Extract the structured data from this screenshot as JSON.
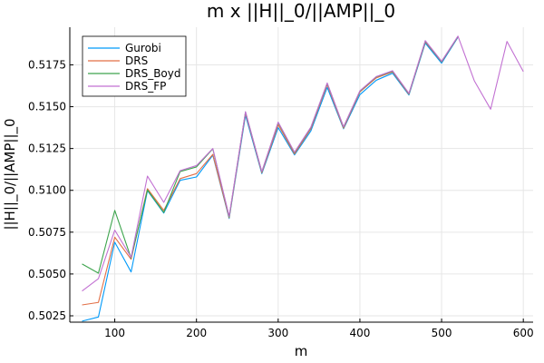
{
  "chart_data": {
    "type": "line",
    "title": "m x ||H||_0/||AMP||_0",
    "xlabel": "m",
    "ylabel": "||H||_0/||AMP||_0",
    "xlim": [
      45,
      612
    ],
    "ylim": [
      5.0212,
      5.1975
    ],
    "xticks": [
      100,
      200,
      300,
      400,
      500,
      600
    ],
    "yticks": [
      5.025,
      5.05,
      5.075,
      5.1,
      5.125,
      5.15,
      5.175
    ],
    "xtick_labels": [
      "100",
      "200",
      "300",
      "400",
      "500",
      "600"
    ],
    "ytick_labels": [
      "0.5025",
      "0.5050",
      "0.5075",
      "0.5100",
      "0.5125",
      "0.5150",
      "0.5175"
    ],
    "ytick_scale": 10,
    "grid": true,
    "legend_position": "top-left",
    "x": [
      60,
      80,
      100,
      120,
      140,
      160,
      180,
      200,
      220,
      240,
      260,
      280,
      300,
      320,
      340,
      360,
      380,
      400,
      420,
      440,
      460,
      480,
      500,
      520,
      540,
      560,
      580,
      600
    ],
    "series": [
      {
        "name": "Gurobi",
        "color": "#009af9",
        "values": [
          5.0218,
          5.0243,
          5.069,
          5.0512,
          5.0998,
          5.0864,
          5.106,
          5.108,
          5.121,
          5.0832,
          5.1448,
          5.11,
          5.1375,
          5.1212,
          5.1355,
          5.1615,
          5.1368,
          5.1572,
          5.1658,
          5.17,
          5.157,
          5.188,
          5.176,
          5.1915,
          null,
          null,
          null,
          null
        ]
      },
      {
        "name": "DRS",
        "color": "#e26f46",
        "values": [
          5.0315,
          5.033,
          5.072,
          5.0588,
          5.101,
          5.088,
          5.107,
          5.11,
          5.1215,
          5.0836,
          5.1462,
          5.1105,
          5.1392,
          5.1218,
          5.1368,
          5.1632,
          5.1372,
          5.1588,
          5.1672,
          5.1708,
          5.1575,
          5.1888,
          5.1768,
          5.1918,
          null,
          null,
          null,
          null
        ]
      },
      {
        "name": "DRS_Boyd",
        "color": "#3da44d",
        "values": [
          5.056,
          5.0505,
          5.088,
          5.0595,
          5.1002,
          5.0868,
          5.1112,
          5.114,
          5.1248,
          5.084,
          5.1468,
          5.111,
          5.1405,
          5.1225,
          5.1375,
          5.164,
          5.1378,
          5.1592,
          5.1678,
          5.1712,
          5.1578,
          5.1892,
          5.177,
          5.192,
          null,
          null,
          null,
          null
        ]
      },
      {
        "name": "DRS_FP",
        "color": "#c271d2",
        "values": [
          5.0398,
          5.0472,
          5.0762,
          5.06,
          5.1085,
          5.0928,
          5.1118,
          5.1148,
          5.125,
          5.0845,
          5.147,
          5.1112,
          5.1408,
          5.1228,
          5.1378,
          5.1642,
          5.138,
          5.1595,
          5.168,
          5.1715,
          5.158,
          5.1895,
          5.1772,
          5.1922,
          5.1655,
          5.1485,
          5.189,
          5.171
        ]
      }
    ]
  }
}
